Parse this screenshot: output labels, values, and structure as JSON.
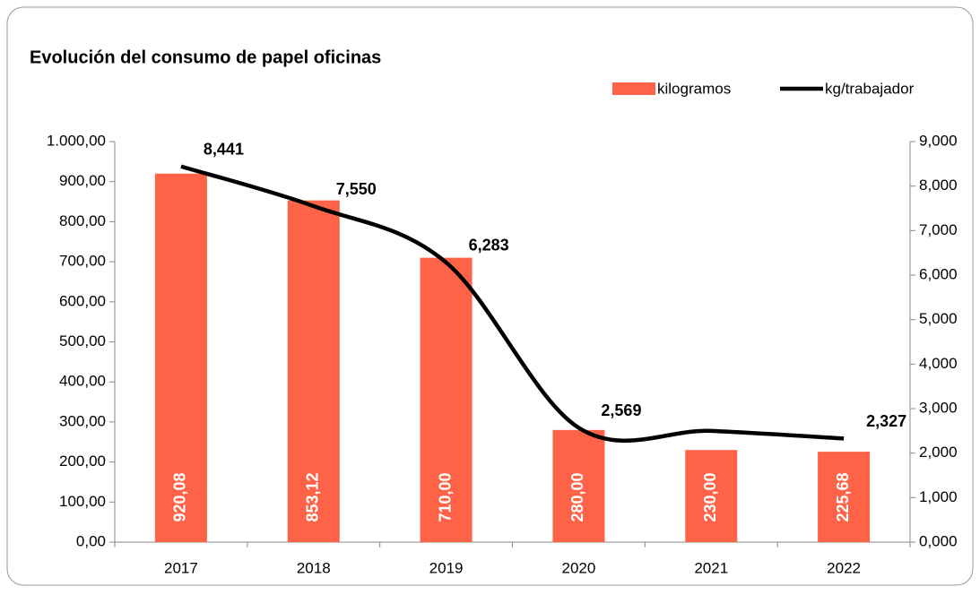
{
  "chart_data": {
    "type": "bar_line",
    "title": "Evolución del consumo de papel oficinas",
    "categories": [
      "2017",
      "2018",
      "2019",
      "2020",
      "2021",
      "2022"
    ],
    "series": [
      {
        "name": "kilogramos",
        "type": "bar",
        "color": "#ff6347",
        "values": [
          920.08,
          853.12,
          710,
          280,
          230,
          225.68
        ],
        "value_labels": [
          "920,08",
          "853,12",
          "710,00",
          "280,00",
          "230,00",
          "225,68"
        ]
      },
      {
        "name": "kg/trabajador",
        "type": "line",
        "axis": "y2",
        "color": "#000000",
        "values": [
          8.441,
          7.55,
          6.283,
          2.569,
          2.5,
          2.327
        ],
        "value_labels": [
          "8,441",
          "7,550",
          "6,283",
          "2,569",
          null,
          "2,327"
        ]
      }
    ],
    "ylim": [
      0,
      1000
    ],
    "yticks": [
      {
        "value": 0,
        "label": "0,00"
      },
      {
        "value": 100,
        "label": "100,00"
      },
      {
        "value": 200,
        "label": "200,00"
      },
      {
        "value": 300,
        "label": "300,00"
      },
      {
        "value": 400,
        "label": "400,00"
      },
      {
        "value": 500,
        "label": "500,00"
      },
      {
        "value": 600,
        "label": "600,00"
      },
      {
        "value": 700,
        "label": "700,00"
      },
      {
        "value": 800,
        "label": "800,00"
      },
      {
        "value": 900,
        "label": "900,00"
      },
      {
        "value": 1000,
        "label": "1.000,00"
      }
    ],
    "y2lim": [
      0,
      9
    ],
    "y2ticks": [
      {
        "value": 0,
        "label": "0,000"
      },
      {
        "value": 1,
        "label": "1,000"
      },
      {
        "value": 2,
        "label": "2,000"
      },
      {
        "value": 3,
        "label": "3,000"
      },
      {
        "value": 4,
        "label": "4,000"
      },
      {
        "value": 5,
        "label": "5,000"
      },
      {
        "value": 6,
        "label": "6,000"
      },
      {
        "value": 7,
        "label": "7,000"
      },
      {
        "value": 8,
        "label": "8,000"
      },
      {
        "value": 9,
        "label": "9,000"
      }
    ],
    "legend": "top-right",
    "grid": false
  }
}
